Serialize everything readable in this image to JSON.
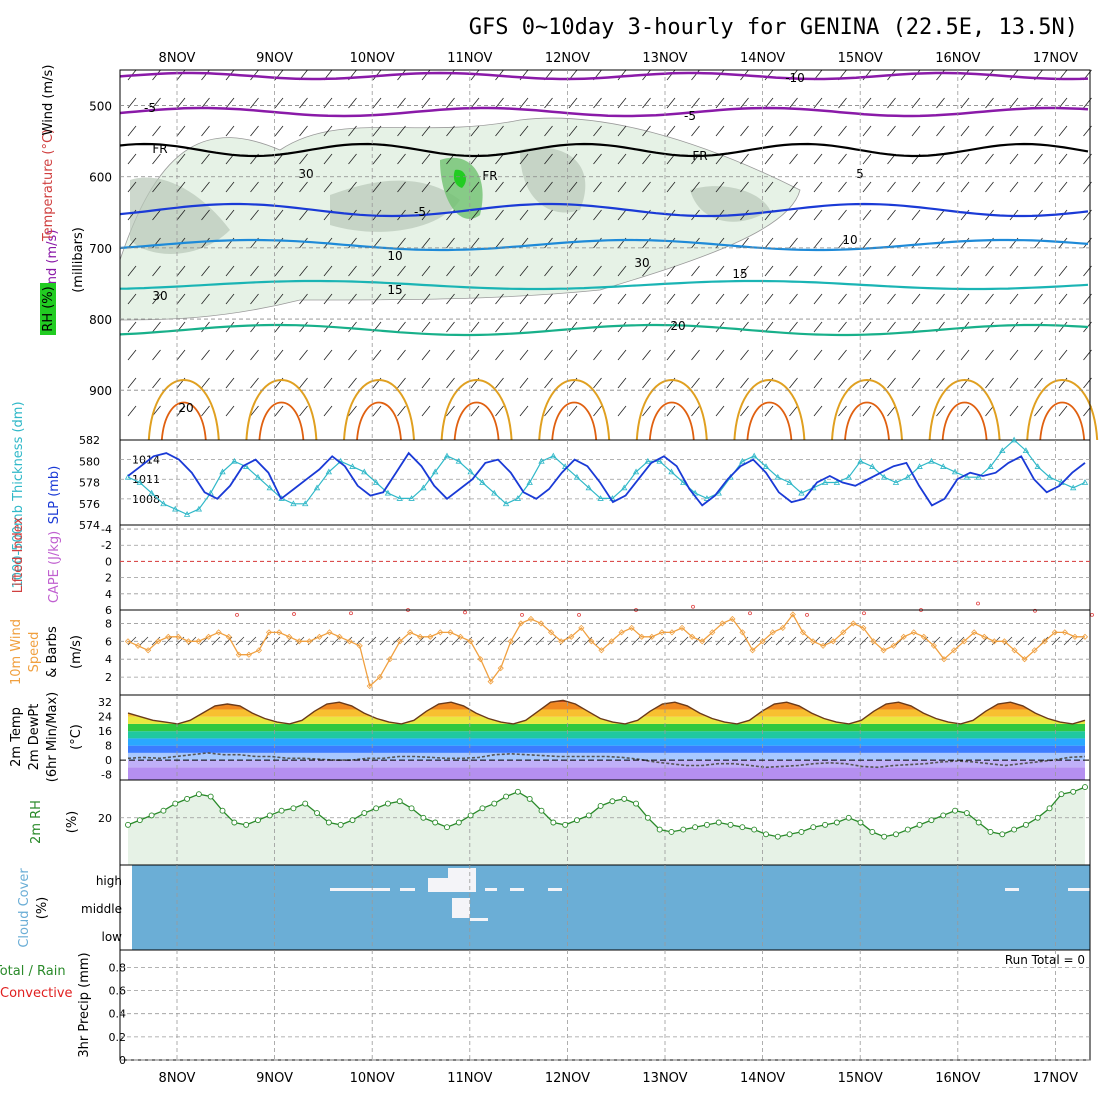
{
  "title": "GFS 0~10day 3-hourly for GENINA (22.5E, 13.5N)",
  "dates": [
    "8NOV",
    "9NOV",
    "10NOV",
    "11NOV",
    "12NOV",
    "13NOV",
    "14NOV",
    "15NOV",
    "16NOV",
    "17NOV"
  ],
  "colors": {
    "purple": "#8a1aa8",
    "black": "#000000",
    "blue_dark": "#1a3ad6",
    "blue_mid": "#1e8ad8",
    "teal": "#1ab4b4",
    "green_teal": "#18b08a",
    "orange": "#e0a020",
    "orange_dark": "#e06010",
    "magenta": "#d01080",
    "rh_light": "#e6f2e6",
    "rh_mid": "#b8c8b8",
    "rh_green": "#22cc22",
    "slp": "#1a3ad6",
    "thick": "#30b8c8",
    "wind": "#f0a040",
    "rh2m": "#2a8a2a",
    "cloud": "#6baed6"
  },
  "panels": {
    "upper": {
      "axis_label": "(millibars)",
      "label_wind": "Wind (m/s)",
      "label_temp": "Temperature (°C)",
      "label_rh": "RH (%)",
      "ticks": [
        "500",
        "600",
        "700",
        "800",
        "900"
      ],
      "contour_labels": [
        "-10",
        "-5",
        "-5",
        "FR",
        "FR",
        "FR",
        "5",
        "-5",
        "10",
        "10",
        "15",
        "15",
        "20",
        "20",
        "30",
        "30",
        "30"
      ]
    },
    "slp": {
      "label_thick": "1000-500mb Thickness (dm)",
      "label_slp": "SLP (mb)",
      "left_ticks": [
        "582",
        "580",
        "578",
        "576",
        "574"
      ],
      "right_ticks": [
        "1014",
        "1011",
        "1008"
      ]
    },
    "cape": {
      "label_li": "Lifted Index",
      "label_cape": "CAPE (J/kg)",
      "ticks": [
        "-4",
        "-2",
        "0",
        "2",
        "4",
        "6"
      ]
    },
    "wind10": {
      "label_a": "10m Wind",
      "label_b": "Speed",
      "label_c": "& Barbs",
      "unit": "(m/s)",
      "ticks": [
        "8",
        "6",
        "4",
        "2"
      ]
    },
    "temp2m": {
      "label_a": "2m Temp",
      "label_b": "2m DewPt",
      "label_c": "(6hr Min/Max)",
      "unit": "(°C)",
      "ticks": [
        "32",
        "24",
        "16",
        "8",
        "0",
        "-8"
      ]
    },
    "rh2m": {
      "label": "2m RH",
      "unit": "(%)",
      "ticks": [
        "20"
      ]
    },
    "cloud": {
      "label": "Cloud Cover",
      "unit": "(%)",
      "levels": [
        "high",
        "middle",
        "low"
      ]
    },
    "precip": {
      "label_a": "Total / Rain",
      "label_b": "Convective",
      "label_c": "3hr Precip (mm)",
      "ticks": [
        "0.8",
        "0.6",
        "0.4",
        "0.2",
        "0"
      ],
      "run_total": "Run Total = 0"
    }
  },
  "chart_data": {
    "type": "line",
    "x_dates": [
      "8NOV",
      "9NOV",
      "10NOV",
      "11NOV",
      "12NOV",
      "13NOV",
      "14NOV",
      "15NOV",
      "16NOV",
      "17NOV"
    ],
    "slp_mb": [
      1011.5,
      1013,
      1014.5,
      1015,
      1014,
      1012,
      1009,
      1008,
      1010,
      1013,
      1014,
      1012,
      1008,
      1009.5,
      1011,
      1012.5,
      1014.5,
      1013,
      1010,
      1008.5,
      1009,
      1012,
      1015,
      1013,
      1010,
      1008,
      1009.5,
      1011,
      1013.5,
      1014,
      1012,
      1009,
      1008,
      1009.5,
      1012,
      1014,
      1013,
      1010.5,
      1007.5,
      1008.5,
      1011,
      1013.5,
      1014.5,
      1013,
      1009.5,
      1007,
      1008.5,
      1011,
      1013,
      1014,
      1012,
      1009,
      1007.5,
      1008,
      1010.5,
      1011.5,
      1010.5,
      1010,
      1011,
      1012,
      1013,
      1013.5,
      1010,
      1007,
      1008,
      1011,
      1012,
      1011.5,
      1012,
      1013.5,
      1014.5,
      1011,
      1009,
      1010,
      1012,
      1013.5
    ],
    "thickness_dm": [
      578.5,
      578,
      577,
      576,
      575.5,
      575,
      575.5,
      577,
      579,
      580,
      579.5,
      578.5,
      577.5,
      576.5,
      576,
      576,
      577.5,
      579,
      580,
      579.5,
      579,
      578,
      577,
      576.5,
      576.5,
      577.5,
      579,
      580.5,
      580,
      579,
      578,
      577,
      576,
      576.5,
      578,
      580,
      580.5,
      579.5,
      578.5,
      577.5,
      576.5,
      576.5,
      577.5,
      579,
      580,
      580,
      579,
      578,
      577,
      576.5,
      577,
      578.5,
      580,
      580.5,
      579.5,
      578.5,
      578,
      577,
      577.5,
      578,
      578,
      578.5,
      580,
      579.5,
      578.5,
      578,
      578.5,
      579.5,
      580,
      579.5,
      579,
      578.5,
      578.5,
      579.5,
      581,
      582,
      581,
      579.5,
      578.5,
      578,
      577.5,
      578
    ],
    "lifted_index": [
      6.6,
      6.5,
      6.4,
      6.0,
      6.3,
      6.6,
      6.6,
      6.0,
      5.6,
      6.4,
      6.6,
      6.4,
      6.0,
      5.2,
      6.1,
      6.6,
      6.6
    ],
    "wind10m_ms": [
      6,
      5.5,
      5,
      6,
      6.5,
      6.5,
      6,
      6,
      6.5,
      7,
      6.5,
      4.5,
      4.5,
      5,
      7,
      7,
      6.5,
      6,
      6,
      6.5,
      7,
      6.5,
      6,
      5.5,
      1,
      2,
      4,
      6,
      7,
      6.5,
      6.5,
      7,
      7,
      6.5,
      6,
      4,
      1.5,
      3,
      6,
      8,
      8.5,
      8,
      7,
      6,
      6.5,
      7.5,
      6,
      5,
      6,
      7,
      7.5,
      6.5,
      6.5,
      7,
      7,
      7.5,
      6.5,
      6,
      7,
      8,
      8.5,
      7,
      5,
      6,
      7,
      7.5,
      9,
      7,
      6,
      5.5,
      6,
      7,
      8,
      7.5,
      6,
      5,
      5.5,
      6.5,
      7,
      6.5,
      5.5,
      4,
      5,
      6,
      7,
      6.5,
      6,
      6,
      5,
      4,
      5,
      6,
      7,
      7,
      6.5,
      6.5
    ],
    "temp2m_c": [
      26,
      24,
      22,
      21,
      20,
      22,
      26,
      30,
      31,
      30,
      26,
      23,
      21,
      20,
      22,
      27,
      31,
      32,
      30,
      26,
      23,
      21,
      20,
      22,
      27,
      31,
      32,
      30,
      26,
      23,
      21,
      20,
      22,
      27,
      32,
      33,
      31,
      27,
      23,
      21,
      20,
      22,
      27,
      31,
      32,
      30,
      26,
      23,
      21,
      20,
      22,
      27,
      31,
      32,
      30,
      26,
      23,
      21,
      20,
      22,
      27,
      31,
      32,
      30,
      26,
      23,
      21,
      20,
      22,
      27,
      31,
      32,
      30,
      26,
      23,
      21,
      20,
      22
    ],
    "dewpt2m_c": [
      1,
      1.5,
      1,
      2,
      3,
      4,
      3,
      3,
      2,
      2,
      1,
      1,
      0.5,
      0,
      0,
      1,
      1,
      2,
      2,
      1.5,
      1,
      1,
      1.5,
      3,
      3.5,
      3,
      2.5,
      2,
      2,
      2,
      2,
      1.5,
      0.5,
      -1,
      -2,
      -3,
      -3,
      -2,
      -2,
      -3,
      -4,
      -3.5,
      -3,
      -2,
      -1.5,
      -2,
      -3.5,
      -4,
      -3,
      -2.5,
      -2,
      -1,
      -0.5,
      -1,
      -2,
      -3,
      -2,
      -1,
      0,
      1.5,
      2
    ],
    "rh2m_pct": [
      17,
      19,
      21,
      23,
      26,
      28,
      30,
      29,
      23,
      18,
      17,
      19,
      21,
      23,
      24,
      26,
      22,
      18,
      17,
      19,
      22,
      24,
      26,
      27,
      24,
      20,
      18,
      16,
      18,
      21,
      24,
      26,
      29,
      31,
      28,
      23,
      18,
      17,
      19,
      21,
      25,
      27,
      28,
      26,
      20,
      15,
      14,
      15,
      16,
      17,
      18,
      17,
      16,
      15,
      13,
      12,
      13,
      14,
      16,
      17,
      18,
      20,
      18,
      14,
      12,
      13,
      15,
      17,
      19,
      21,
      23,
      22,
      18,
      14,
      13,
      15,
      17,
      20,
      24,
      30,
      31,
      33
    ],
    "precip_mm": [],
    "ylabel": "3hr Precip (mm)"
  }
}
